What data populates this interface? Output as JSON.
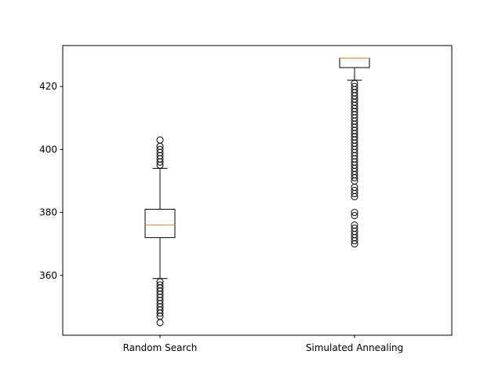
{
  "chart_data": {
    "type": "boxplot",
    "title": "",
    "xlabel": "",
    "ylabel": "",
    "categories": [
      "Random Search",
      "Simulated Annealing"
    ],
    "ylim": [
      341,
      433
    ],
    "yticks": [
      360,
      380,
      400,
      420
    ],
    "ytick_labels": [
      "360",
      "380",
      "400",
      "420"
    ],
    "grid": false,
    "colors": {
      "box": "#000000",
      "median": "#ff7f0e",
      "flier": "#000000"
    },
    "series": [
      {
        "label": "Random Search",
        "whisker_low": 359,
        "q1": 372,
        "median": 376,
        "q3": 381,
        "whisker_high": 394,
        "fliers": [
          345,
          347,
          348,
          349,
          350,
          351,
          352,
          353,
          354,
          355,
          356,
          357,
          358,
          395,
          396,
          397,
          398,
          399,
          400,
          401,
          403
        ]
      },
      {
        "label": "Simulated Annealing",
        "whisker_low": 422,
        "q1": 426,
        "median": 429,
        "q3": 429,
        "whisker_high": 429,
        "fliers": [
          370,
          371,
          372,
          373,
          374,
          375,
          376,
          379,
          380,
          385,
          386,
          387,
          388,
          390,
          391,
          392,
          393,
          394,
          395,
          396,
          397,
          398,
          399,
          400,
          401,
          402,
          403,
          404,
          405,
          406,
          407,
          408,
          409,
          410,
          411,
          412,
          413,
          414,
          415,
          416,
          417,
          418,
          419,
          420,
          421
        ]
      }
    ]
  }
}
